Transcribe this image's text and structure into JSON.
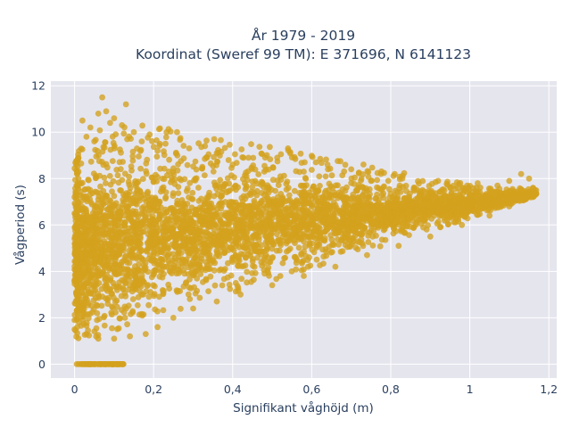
{
  "chart_data": {
    "type": "scatter",
    "title_lines": [
      "År 1979 - 2019",
      "Koordinat (Sweref 99 TM): E 371696, N 6141123"
    ],
    "xlabel": "Signifikant våghöjd (m)",
    "ylabel": "Vågperiod (s)",
    "xlim": [
      -0.06,
      1.22
    ],
    "ylim": [
      -0.6,
      12.2
    ],
    "x_ticks": [
      0,
      0.2,
      0.4,
      0.6,
      0.8,
      1,
      1.2
    ],
    "x_tick_labels": [
      "0",
      "0,2",
      "0,4",
      "0,6",
      "0,8",
      "1",
      "1,2"
    ],
    "y_ticks": [
      0,
      2,
      4,
      6,
      8,
      10,
      12
    ],
    "y_tick_labels": [
      "0",
      "2",
      "4",
      "6",
      "8",
      "10",
      "12"
    ],
    "grid": true,
    "marker_color": "#d4a11e",
    "plot_background": "#e5e5ee",
    "series": [
      {
        "points": [
          [
            0.01,
            8.9
          ],
          [
            0.02,
            10.5
          ],
          [
            0.03,
            9.8
          ],
          [
            0.04,
            10.2
          ],
          [
            0.05,
            9.6
          ],
          [
            0.06,
            10.8
          ],
          [
            0.07,
            11.5
          ],
          [
            0.08,
            10.9
          ],
          [
            0.09,
            10.4
          ],
          [
            0.1,
            10.6
          ],
          [
            0.12,
            10.3
          ],
          [
            0.13,
            11.2
          ],
          [
            0.15,
            10.0
          ],
          [
            0.17,
            9.6
          ],
          [
            0.19,
            9.9
          ],
          [
            0.21,
            9.2
          ],
          [
            0.23,
            9.5
          ],
          [
            0.26,
            9.0
          ],
          [
            0.29,
            9.3
          ],
          [
            0.33,
            9.4
          ],
          [
            0.36,
            9.1
          ],
          [
            0.4,
            8.6
          ],
          [
            0.44,
            8.9
          ],
          [
            0.48,
            8.3
          ],
          [
            0.54,
            9.3
          ],
          [
            0.58,
            8.3
          ],
          [
            0.64,
            8.6
          ],
          [
            0.7,
            8.4
          ],
          [
            0.75,
            7.9
          ],
          [
            0.81,
            8.2
          ],
          [
            0.86,
            7.6
          ],
          [
            0.92,
            7.9
          ],
          [
            0.97,
            7.6
          ],
          [
            1.02,
            7.8
          ],
          [
            1.07,
            7.7
          ],
          [
            1.1,
            7.9
          ],
          [
            1.13,
            8.2
          ],
          [
            1.15,
            8.0
          ],
          [
            1.16,
            7.6
          ],
          [
            1.12,
            7.3
          ],
          [
            0.03,
            1.3
          ],
          [
            0.06,
            1.1
          ],
          [
            0.1,
            1.1
          ],
          [
            0.14,
            1.2
          ],
          [
            0.18,
            1.3
          ],
          [
            0.21,
            1.6
          ],
          [
            0.25,
            2.0
          ],
          [
            0.3,
            2.4
          ],
          [
            0.36,
            2.7
          ],
          [
            0.42,
            3.0
          ],
          [
            0.5,
            3.4
          ],
          [
            0.58,
            3.8
          ],
          [
            0.66,
            4.2
          ],
          [
            0.74,
            4.7
          ],
          [
            0.82,
            5.1
          ],
          [
            0.9,
            5.5
          ],
          [
            0.98,
            6.0
          ],
          [
            1.05,
            6.4
          ],
          [
            1.1,
            6.8
          ],
          [
            1.14,
            7.2
          ],
          [
            0.0,
            1.5
          ],
          [
            0.0,
            1.9
          ],
          [
            0.0,
            3.6
          ],
          [
            0.0,
            5.4
          ],
          [
            0.0,
            6.5
          ],
          [
            0.0,
            7.2
          ],
          [
            0.01,
            8.3
          ],
          [
            0.02,
            0.0
          ],
          [
            0.04,
            0.0
          ],
          [
            0.06,
            0.0
          ],
          [
            0.08,
            0.0
          ],
          [
            0.1,
            0.0
          ],
          [
            0.12,
            0.0
          ],
          [
            0.05,
            4.5
          ],
          [
            0.1,
            6.0
          ],
          [
            0.2,
            4.0
          ],
          [
            0.3,
            5.0
          ],
          [
            0.4,
            5.5
          ],
          [
            0.5,
            6.0
          ],
          [
            0.6,
            6.3
          ],
          [
            0.7,
            6.5
          ],
          [
            0.8,
            6.8
          ],
          [
            0.9,
            7.0
          ],
          [
            1.0,
            7.2
          ]
        ]
      }
    ]
  }
}
